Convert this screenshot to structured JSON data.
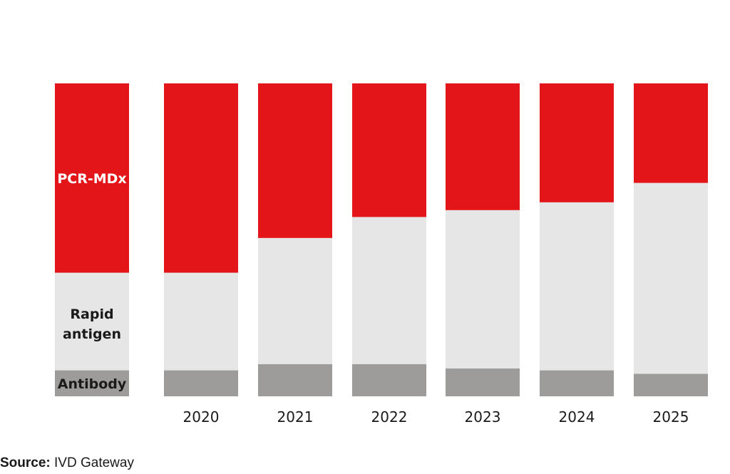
{
  "chart_data": {
    "type": "bar",
    "stacked": true,
    "normalized_to_percent": true,
    "categories": [
      "2020",
      "2021",
      "2022",
      "2023",
      "2024",
      "2025"
    ],
    "series": [
      {
        "name": "Antibody",
        "values": [
          8.3,
          10.3,
          10.3,
          8.9,
          8.3,
          7.2
        ],
        "color": "#9d9c9a"
      },
      {
        "name": "Rapid antigen",
        "values": [
          31.2,
          40.3,
          47.0,
          50.6,
          53.7,
          61.0
        ],
        "color": "#e6e6e6"
      },
      {
        "name": "PCR-MDx",
        "values": [
          60.5,
          49.4,
          42.7,
          40.5,
          38.0,
          31.8
        ],
        "color": "#e41518"
      }
    ],
    "key_bar": {
      "values": [
        8.3,
        31.2,
        60.5
      ]
    },
    "legend_position": "left (key bar)",
    "grid": false
  },
  "source": {
    "label": "Source:",
    "text": "IVD Gateway"
  }
}
